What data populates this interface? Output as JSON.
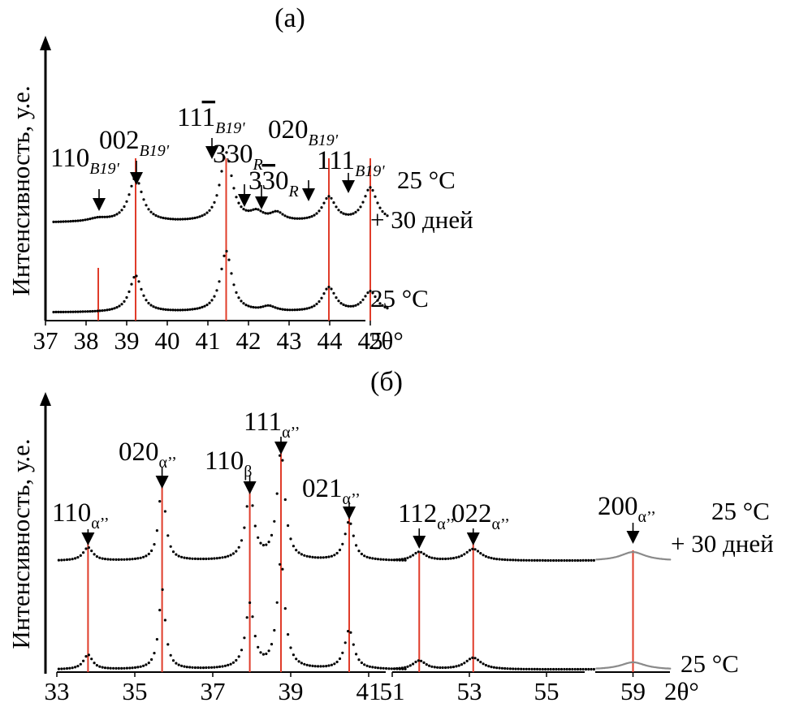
{
  "chart_data": [
    {
      "panel_label": "(a)",
      "type": "scatter",
      "ylabel": "Интенсивность, у.е.",
      "xlabel": "2θ°",
      "xlim": [
        37,
        45.5
      ],
      "x_ticks": [
        37,
        38,
        39,
        40,
        41,
        42,
        43,
        44,
        45
      ],
      "grid": false,
      "series": [
        {
          "label_lines": [
            "25 °C",
            "+ 30 дней"
          ],
          "baseline": 0.18,
          "peaks": [
            {
              "x": 38.3,
              "h": 0.04,
              "w": 0.3
            },
            {
              "x": 39.22,
              "h": 0.55,
              "w": 0.2
            },
            {
              "x": 41.45,
              "h": 0.85,
              "w": 0.18
            },
            {
              "x": 42.2,
              "h": 0.1,
              "w": 0.2
            },
            {
              "x": 42.7,
              "h": 0.1,
              "w": 0.2
            },
            {
              "x": 43.98,
              "h": 0.3,
              "w": 0.2
            },
            {
              "x": 45.0,
              "h": 0.42,
              "w": 0.2
            }
          ]
        },
        {
          "label_lines": [
            "25 °C"
          ],
          "baseline": 0.02,
          "peaks": [
            {
              "x": 39.22,
              "h": 0.45,
              "w": 0.18
            },
            {
              "x": 41.45,
              "h": 0.75,
              "w": 0.17
            },
            {
              "x": 42.5,
              "h": 0.06,
              "w": 0.2
            },
            {
              "x": 43.98,
              "h": 0.3,
              "w": 0.2
            },
            {
              "x": 45.0,
              "h": 0.25,
              "w": 0.2
            }
          ]
        }
      ],
      "reference_lines": [
        38.3,
        39.22,
        41.45,
        43.98,
        45.0
      ],
      "annotations": [
        {
          "text": "110",
          "sub": "B19'",
          "x": 38.3
        },
        {
          "text": "002",
          "sub": "B19'",
          "x": 39.22
        },
        {
          "text": "11",
          "bar": "1",
          "sub": "B19'",
          "x": 41.45
        },
        {
          "text": "330",
          "sub": "R",
          "x": 42.2
        },
        {
          "text": "3",
          "bar": "3",
          "text2": "0",
          "sub": "R",
          "x": 42.7
        },
        {
          "text": "020",
          "sub": "B19'",
          "x": 43.98
        },
        {
          "text": "111",
          "sub": "B19'",
          "x": 45.0
        }
      ]
    },
    {
      "panel_label": "(б)",
      "type": "scatter",
      "ylabel": "Интенсивность, у.е.",
      "xlabel": "2θ°",
      "segments": [
        {
          "xlim": [
            33,
            42
          ],
          "ticks": [
            33,
            35,
            37,
            39,
            41
          ]
        },
        {
          "xlim": [
            51,
            56.3
          ],
          "ticks": [
            51,
            53,
            55
          ]
        },
        {
          "xlim": [
            57.5,
            60.5
          ],
          "ticks": [
            59
          ]
        }
      ],
      "grid": false,
      "series": [
        {
          "label_lines": [
            "25 °C",
            "+ 30 дней"
          ],
          "baseline": 0.06,
          "peaks": [
            {
              "x": 33.8,
              "h": 0.09,
              "w": 0.15
            },
            {
              "x": 35.7,
              "h": 0.55,
              "w": 0.1
            },
            {
              "x": 37.95,
              "h": 0.46,
              "w": 0.13
            },
            {
              "x": 38.75,
              "h": 0.75,
              "w": 0.12
            },
            {
              "x": 40.5,
              "h": 0.27,
              "w": 0.14
            },
            {
              "x": 51.7,
              "h": 0.06,
              "w": 0.2
            },
            {
              "x": 53.1,
              "h": 0.08,
              "w": 0.25
            },
            {
              "x": 59.0,
              "h": 0.06,
              "w": 0.6
            }
          ]
        },
        {
          "label_lines": [
            "25 °C"
          ],
          "baseline": 0.01,
          "peaks": [
            {
              "x": 33.8,
              "h": 0.1,
              "w": 0.14
            },
            {
              "x": 35.7,
              "h": 0.55,
              "w": 0.1
            },
            {
              "x": 37.95,
              "h": 0.44,
              "w": 0.13
            },
            {
              "x": 38.75,
              "h": 0.75,
              "w": 0.12
            },
            {
              "x": 40.5,
              "h": 0.27,
              "w": 0.14
            },
            {
              "x": 51.7,
              "h": 0.06,
              "w": 0.2
            },
            {
              "x": 53.1,
              "h": 0.08,
              "w": 0.25
            },
            {
              "x": 59.0,
              "h": 0.05,
              "w": 0.6
            }
          ]
        }
      ],
      "reference_lines": [
        33.8,
        35.7,
        37.95,
        38.75,
        40.5,
        51.7,
        53.1,
        59.0
      ],
      "annotations": [
        {
          "text": "110",
          "sub": "α’’",
          "x": 33.8
        },
        {
          "text": "020",
          "sub": "α’’",
          "x": 35.7
        },
        {
          "text": "110",
          "sub": "β",
          "x": 37.95
        },
        {
          "text": "111",
          "sub": "α’’",
          "x": 38.75
        },
        {
          "text": "021",
          "sub": "α’’",
          "x": 40.5
        },
        {
          "text": "112",
          "sub": "α’’",
          "x": 51.7
        },
        {
          "text": "022",
          "sub": "α’’",
          "x": 53.1
        },
        {
          "text": "200",
          "sub": "α’’",
          "x": 59.0
        }
      ]
    }
  ]
}
